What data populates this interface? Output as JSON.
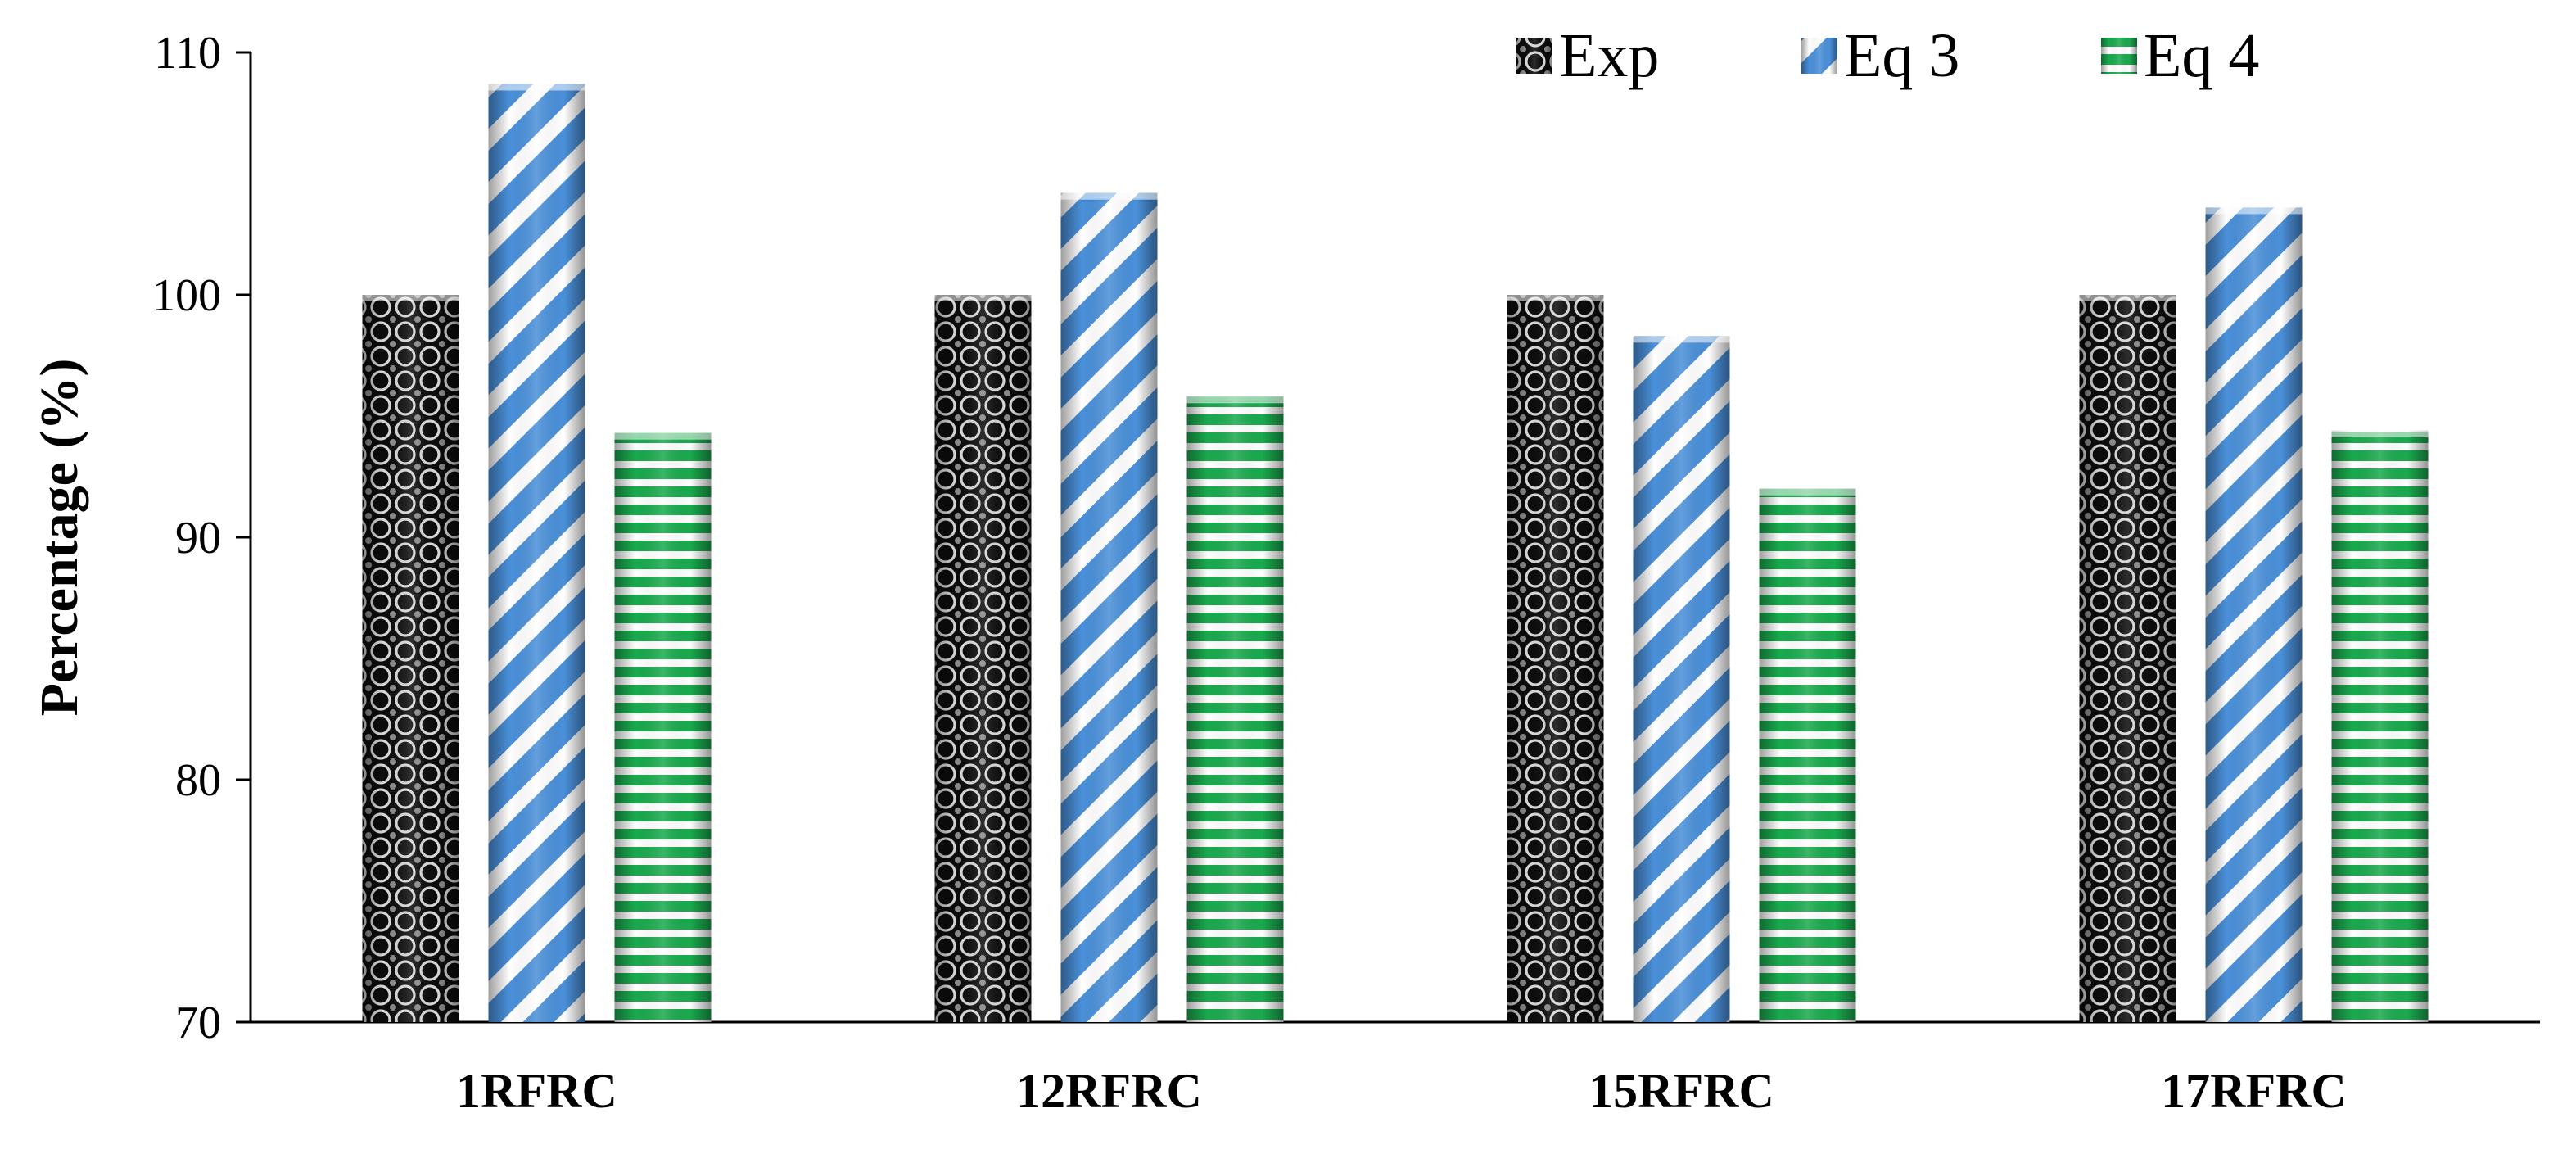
{
  "chart_data": {
    "type": "bar",
    "title": "",
    "xlabel": "",
    "ylabel": "Percentage (%)",
    "ylim": [
      70,
      110
    ],
    "yticks": [
      "70",
      "80",
      "90",
      "100",
      "110"
    ],
    "categories": [
      "1RFRC",
      "12RFRC",
      "15RFRC",
      "17RFRC"
    ],
    "series": [
      {
        "name": "Exp",
        "values": [
          100,
          100,
          100,
          100
        ],
        "pattern": "circles",
        "color": "#000000"
      },
      {
        "name": "Eq 3",
        "values": [
          108.7,
          104.2,
          98.3,
          103.6
        ],
        "pattern": "diagonal-stripes",
        "color": "#4a90d9"
      },
      {
        "name": "Eq 4",
        "values": [
          94.3,
          95.8,
          92.0,
          94.4
        ],
        "pattern": "horizontal-stripes",
        "color": "#1aaa4e"
      }
    ],
    "grid": false,
    "legend_position": "top-right"
  }
}
